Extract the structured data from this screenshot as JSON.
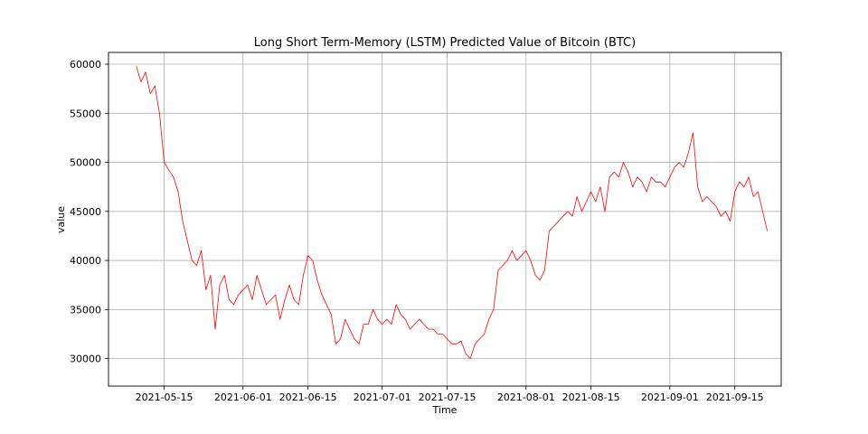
{
  "chart_data": {
    "type": "line",
    "title": "Long Short Term-Memory (LSTM) Predicted Value of Bitcoin (BTC)",
    "xlabel": "Time",
    "ylabel": "value",
    "x_range": [
      "2021-05-03",
      "2021-09-25"
    ],
    "ylim": [
      27200,
      61200
    ],
    "grid": true,
    "colors": {
      "line": "#ff0000"
    },
    "x_ticks": [
      "2021-05-15",
      "2021-06-01",
      "2021-06-15",
      "2021-07-01",
      "2021-07-15",
      "2021-08-01",
      "2021-08-15",
      "2021-09-01",
      "2021-09-15"
    ],
    "x_tick_labels": [
      "2021-05-15",
      "2021-06-01",
      "2021-06-15",
      "2021-07-01",
      "2021-07-15",
      "2021-08-01",
      "2021-08-15",
      "2021-09-01",
      "2021-09-15"
    ],
    "y_ticks": [
      30000,
      35000,
      40000,
      45000,
      50000,
      55000,
      60000
    ],
    "y_tick_labels": [
      "30000",
      "35000",
      "40000",
      "45000",
      "50000",
      "55000",
      "60000"
    ],
    "series": [
      {
        "x": [
          "2021-05-09",
          "2021-05-10",
          "2021-05-11",
          "2021-05-12",
          "2021-05-13",
          "2021-05-14",
          "2021-05-15",
          "2021-05-16",
          "2021-05-17",
          "2021-05-18",
          "2021-05-19",
          "2021-05-20",
          "2021-05-21",
          "2021-05-22",
          "2021-05-23",
          "2021-05-24",
          "2021-05-25",
          "2021-05-26",
          "2021-05-27",
          "2021-05-28",
          "2021-05-29",
          "2021-05-30",
          "2021-05-31",
          "2021-06-01",
          "2021-06-02",
          "2021-06-03",
          "2021-06-04",
          "2021-06-05",
          "2021-06-06",
          "2021-06-07",
          "2021-06-08",
          "2021-06-09",
          "2021-06-10",
          "2021-06-11",
          "2021-06-12",
          "2021-06-13",
          "2021-06-14",
          "2021-06-15",
          "2021-06-16",
          "2021-06-17",
          "2021-06-18",
          "2021-06-19",
          "2021-06-20",
          "2021-06-21",
          "2021-06-22",
          "2021-06-23",
          "2021-06-24",
          "2021-06-25",
          "2021-06-26",
          "2021-06-27",
          "2021-06-28",
          "2021-06-29",
          "2021-06-30",
          "2021-07-01",
          "2021-07-02",
          "2021-07-03",
          "2021-07-04",
          "2021-07-05",
          "2021-07-06",
          "2021-07-07",
          "2021-07-08",
          "2021-07-09",
          "2021-07-10",
          "2021-07-11",
          "2021-07-12",
          "2021-07-13",
          "2021-07-14",
          "2021-07-15",
          "2021-07-16",
          "2021-07-17",
          "2021-07-18",
          "2021-07-19",
          "2021-07-20",
          "2021-07-21",
          "2021-07-22",
          "2021-07-23",
          "2021-07-24",
          "2021-07-25",
          "2021-07-26",
          "2021-07-27",
          "2021-07-28",
          "2021-07-29",
          "2021-07-30",
          "2021-07-31",
          "2021-08-01",
          "2021-08-02",
          "2021-08-03",
          "2021-08-04",
          "2021-08-05",
          "2021-08-06",
          "2021-08-07",
          "2021-08-08",
          "2021-08-09",
          "2021-08-10",
          "2021-08-11",
          "2021-08-12",
          "2021-08-13",
          "2021-08-14",
          "2021-08-15",
          "2021-08-16",
          "2021-08-17",
          "2021-08-18",
          "2021-08-19",
          "2021-08-20",
          "2021-08-21",
          "2021-08-22",
          "2021-08-23",
          "2021-08-24",
          "2021-08-25",
          "2021-08-26",
          "2021-08-27",
          "2021-08-28",
          "2021-08-29",
          "2021-08-30",
          "2021-08-31",
          "2021-09-01",
          "2021-09-02",
          "2021-09-03",
          "2021-09-04",
          "2021-09-05",
          "2021-09-06",
          "2021-09-07",
          "2021-09-08",
          "2021-09-09",
          "2021-09-10",
          "2021-09-11",
          "2021-09-12",
          "2021-09-13",
          "2021-09-14",
          "2021-09-15",
          "2021-09-16",
          "2021-09-17",
          "2021-09-18",
          "2021-09-19",
          "2021-09-20",
          "2021-09-21",
          "2021-09-22"
        ],
        "values": [
          59800,
          58200,
          59200,
          57000,
          57800,
          55000,
          50000,
          49200,
          48500,
          47000,
          44000,
          42000,
          40000,
          39500,
          41000,
          37000,
          38500,
          33000,
          37500,
          38500,
          36000,
          35500,
          36500,
          37000,
          37500,
          36000,
          38500,
          37000,
          35500,
          36000,
          36500,
          34000,
          36000,
          37500,
          36000,
          35500,
          38500,
          40500,
          40000,
          38000,
          36500,
          35500,
          34500,
          31500,
          32000,
          34000,
          33000,
          32000,
          31500,
          33500,
          33500,
          35000,
          34000,
          33500,
          34000,
          33500,
          35500,
          34500,
          34000,
          33000,
          33500,
          34000,
          33500,
          33000,
          33000,
          32500,
          32500,
          32000,
          31500,
          31500,
          31800,
          30500,
          30000,
          31500,
          32000,
          32500,
          34000,
          35000,
          39000,
          39500,
          40000,
          41000,
          40000,
          40500,
          41000,
          40000,
          38500,
          38000,
          39000,
          43000,
          43500,
          44000,
          44500,
          45000,
          44500,
          46500,
          45000,
          46000,
          47000,
          46000,
          47500,
          45000,
          48500,
          49000,
          48500,
          50000,
          49000,
          47500,
          48500,
          48000,
          47000,
          48500,
          48000,
          48000,
          47500,
          48500,
          49500,
          50000,
          49500,
          51000,
          53000,
          47500,
          46000,
          46500,
          46000,
          45500,
          44500,
          45000,
          44000,
          47000,
          48000,
          47500,
          48500,
          46500,
          47000,
          45000,
          43000
        ]
      }
    ]
  }
}
